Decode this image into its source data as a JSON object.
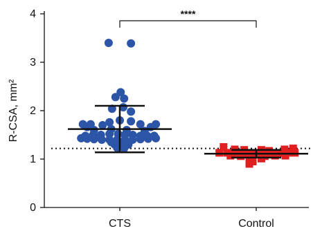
{
  "chart_data": {
    "type": "scatter",
    "ylabel": "R-CSA, mm²",
    "ylim": [
      0,
      4
    ],
    "yticks": [
      0,
      1,
      2,
      3,
      4
    ],
    "categories": [
      "CTS",
      "Control"
    ],
    "reference_line": 1.22,
    "significance": {
      "label": "****",
      "between": [
        "CTS",
        "Control"
      ]
    },
    "series": [
      {
        "category": "CTS",
        "marker": "circle",
        "color": "#2c55a8",
        "mean": 1.62,
        "sd_upper": 2.1,
        "sd_lower": 1.14,
        "points": [
          [
            -0.13,
            3.4
          ],
          [
            0.13,
            3.39
          ],
          [
            0.01,
            2.38
          ],
          [
            -0.05,
            2.28
          ],
          [
            0.05,
            2.25
          ],
          [
            -0.09,
            2.04
          ],
          [
            0.04,
            2.07
          ],
          [
            0.13,
            1.98
          ],
          [
            -0.43,
            1.72
          ],
          [
            -0.34,
            1.72
          ],
          [
            -0.38,
            1.66
          ],
          [
            -0.2,
            1.7
          ],
          [
            -0.12,
            1.76
          ],
          [
            0.0,
            1.8
          ],
          [
            0.13,
            1.78
          ],
          [
            0.24,
            1.72
          ],
          [
            0.42,
            1.72
          ],
          [
            0.36,
            1.66
          ],
          [
            -0.3,
            1.6
          ],
          [
            -0.1,
            1.62
          ],
          [
            0.08,
            1.6
          ],
          [
            0.29,
            1.58
          ],
          [
            -0.4,
            1.48
          ],
          [
            -0.31,
            1.5
          ],
          [
            -0.22,
            1.5
          ],
          [
            -0.12,
            1.52
          ],
          [
            -0.02,
            1.52
          ],
          [
            0.06,
            1.5
          ],
          [
            0.15,
            1.5
          ],
          [
            0.24,
            1.48
          ],
          [
            0.32,
            1.48
          ],
          [
            0.4,
            1.48
          ],
          [
            -0.45,
            1.43
          ],
          [
            -0.38,
            1.42
          ],
          [
            -0.3,
            1.41
          ],
          [
            -0.21,
            1.4
          ],
          [
            -0.12,
            1.4
          ],
          [
            -0.03,
            1.4
          ],
          [
            0.06,
            1.4
          ],
          [
            0.15,
            1.4
          ],
          [
            0.24,
            1.41
          ],
          [
            0.33,
            1.42
          ],
          [
            0.42,
            1.43
          ],
          [
            -0.1,
            1.35
          ],
          [
            0.0,
            1.35
          ],
          [
            0.1,
            1.35
          ],
          [
            -0.06,
            1.3
          ],
          [
            0.03,
            1.3
          ],
          [
            0.1,
            1.3
          ],
          [
            -0.03,
            1.23
          ],
          [
            0.05,
            1.22
          ]
        ]
      },
      {
        "category": "Control",
        "marker": "square",
        "color": "#e02020",
        "mean": 1.11,
        "sd_upper": 1.19,
        "sd_lower": 1.03,
        "points": [
          [
            -0.38,
            1.25
          ],
          [
            -0.25,
            1.2
          ],
          [
            -0.14,
            1.19
          ],
          [
            0.06,
            1.19
          ],
          [
            0.15,
            1.17
          ],
          [
            0.33,
            1.2
          ],
          [
            0.43,
            1.22
          ],
          [
            -0.43,
            1.13
          ],
          [
            -0.34,
            1.13
          ],
          [
            -0.26,
            1.12
          ],
          [
            -0.18,
            1.12
          ],
          [
            -0.1,
            1.11
          ],
          [
            -0.02,
            1.11
          ],
          [
            0.06,
            1.11
          ],
          [
            0.14,
            1.11
          ],
          [
            0.22,
            1.12
          ],
          [
            0.3,
            1.12
          ],
          [
            0.38,
            1.13
          ],
          [
            0.45,
            1.13
          ],
          [
            -0.3,
            1.07
          ],
          [
            -0.18,
            1.06
          ],
          [
            -0.06,
            1.05
          ],
          [
            0.1,
            1.06
          ],
          [
            0.22,
            1.07
          ],
          [
            0.34,
            1.07
          ],
          [
            -0.08,
            1.02
          ],
          [
            0.06,
            1.01
          ],
          [
            -0.04,
            0.95
          ],
          [
            -0.08,
            0.9
          ]
        ]
      }
    ]
  }
}
